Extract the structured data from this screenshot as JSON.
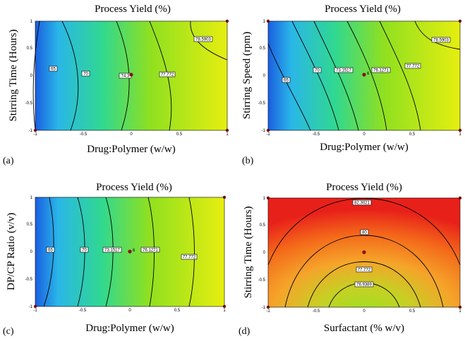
{
  "chart_data": [
    {
      "panel": "(a)",
      "type": "contour",
      "title": "Process Yield (%)",
      "xlabel": "Drug:Polymer (w/w)",
      "ylabel": "Stirring Time (Hours)",
      "xlim": [
        -1,
        1
      ],
      "ylim": [
        -1,
        1
      ],
      "xticks": [
        "-1",
        "-0.5",
        "0",
        "0.5",
        "1"
      ],
      "yticks": [
        "1",
        "0.5",
        "0",
        "-0.5",
        "-1"
      ],
      "colormap": [
        "#1a5fe0",
        "#2ab6e8",
        "#30d890",
        "#8fe020",
        "#e6ee10"
      ],
      "contour_levels": [
        "65",
        "70",
        "74.3",
        "77.772",
        "78.5903"
      ],
      "center_point": {
        "x": 0,
        "y": 0,
        "label": ""
      },
      "design_points": [
        {
          "x": 1,
          "y": 1
        },
        {
          "x": 1,
          "y": -1
        },
        {
          "x": -1,
          "y": -1
        }
      ]
    },
    {
      "panel": "(b)",
      "type": "contour",
      "title": "Process Yield (%)",
      "xlabel": "Drug:Polymer (w/w)",
      "ylabel": "Stirring  Speed (rpm)",
      "xlim": [
        -1,
        1
      ],
      "ylim": [
        -1,
        1
      ],
      "xticks": [
        "-1",
        "-0.5",
        "0",
        "0.5",
        "1"
      ],
      "yticks": [
        "1",
        "0.5",
        "0",
        "-0.5",
        "-1"
      ],
      "colormap": [
        "#1a5fe0",
        "#2ab6e8",
        "#30d890",
        "#8fe020",
        "#e6ee10"
      ],
      "contour_levels": [
        "65",
        "70",
        "73.1517",
        "76.1271",
        "77.772",
        "78.5903"
      ],
      "center_point": {
        "x": 0,
        "y": 0,
        "label": "6"
      },
      "design_points": [
        {
          "x": 1,
          "y": 1
        },
        {
          "x": 1,
          "y": -1
        },
        {
          "x": -1,
          "y": -1
        },
        {
          "x": -1,
          "y": 1
        }
      ]
    },
    {
      "panel": "(c)",
      "type": "contour",
      "title": "Process Yield (%)",
      "xlabel": "Drug:Polymer (w/w)",
      "ylabel": "DP/CP Ratio (v/v)",
      "xlim": [
        -1,
        1
      ],
      "ylim": [
        -1,
        1
      ],
      "xticks": [
        "-1",
        "-0.5",
        "0",
        "0.5",
        "1"
      ],
      "yticks": [
        "1",
        "0.5",
        "0",
        "-0.5",
        "-1"
      ],
      "colormap": [
        "#1a5fe0",
        "#2ab6e8",
        "#30d890",
        "#8fe020",
        "#e6ee10"
      ],
      "contour_levels": [
        "65",
        "70",
        "73.1517",
        "76.1271",
        "77.772"
      ],
      "center_point": {
        "x": 0,
        "y": 0,
        "label": "6"
      },
      "design_points": [
        {
          "x": 1,
          "y": 1
        },
        {
          "x": 1,
          "y": -1
        },
        {
          "x": -1,
          "y": -1
        }
      ]
    },
    {
      "panel": "(d)",
      "type": "contour",
      "title": "Process Yield (%)",
      "xlabel": "Surfactant (% w/v)",
      "ylabel": "Stirring  Time (Hours)",
      "xlim": [
        -1,
        1
      ],
      "ylim": [
        -1,
        1
      ],
      "xticks": [
        "-1",
        "-0.5",
        "0",
        "0.5",
        "1"
      ],
      "yticks": [
        "1",
        "0.5",
        "0",
        "-0.5",
        "-1"
      ],
      "colormap": [
        "#e8201a",
        "#f46a1a",
        "#f5a42a",
        "#c6d024",
        "#9ee020"
      ],
      "contour_levels": [
        "82.3021",
        "80",
        "77.772",
        "76.9389"
      ],
      "center_point": {
        "x": 0,
        "y": 0,
        "label": ""
      },
      "design_points": [
        {
          "x": 1,
          "y": 1
        },
        {
          "x": -1,
          "y": 1
        },
        {
          "x": 1,
          "y": -1
        },
        {
          "x": -1,
          "y": -1
        }
      ]
    }
  ]
}
